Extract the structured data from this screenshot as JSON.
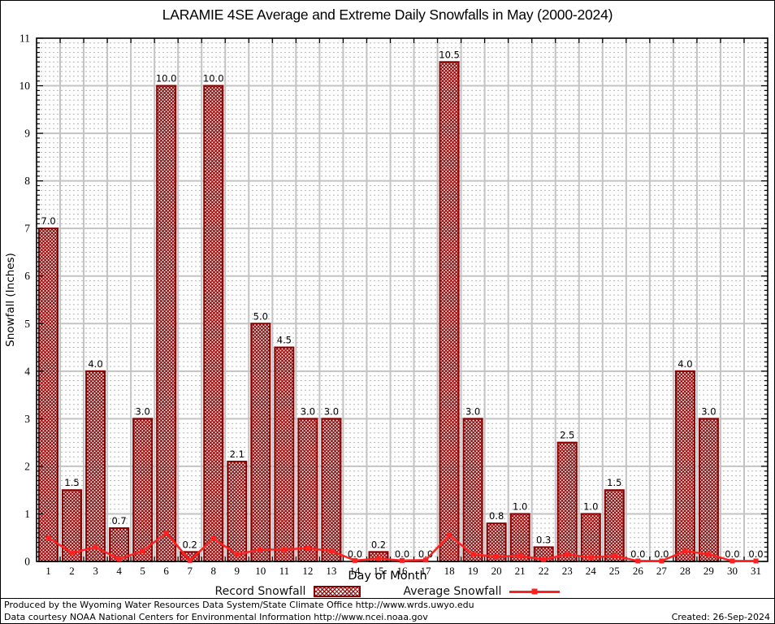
{
  "title": "LARAMIE 4SE Average and Extreme Daily Snowfalls in May (2000-2024)",
  "chart_data": {
    "type": "bar",
    "title": "LARAMIE 4SE Average and Extreme Daily Snowfalls in May (2000-2024)",
    "xlabel": "Day of Month",
    "ylabel": "Snowfall (Inches)",
    "ylim": [
      0,
      11
    ],
    "y_major_step": 1,
    "y_minor_step": 0.1,
    "grid": true,
    "legend_position": "bottom",
    "categories": [
      1,
      2,
      3,
      4,
      5,
      6,
      7,
      8,
      9,
      10,
      11,
      12,
      13,
      14,
      15,
      16,
      17,
      18,
      19,
      20,
      21,
      22,
      23,
      24,
      25,
      26,
      27,
      28,
      29,
      30,
      31
    ],
    "series": [
      {
        "name": "Record Snowfall",
        "type": "bar",
        "values": [
          7.0,
          1.5,
          4.0,
          0.7,
          3.0,
          10.0,
          0.2,
          10.0,
          2.1,
          5.0,
          4.5,
          3.0,
          3.0,
          0.0,
          0.2,
          0.0,
          0.0,
          10.5,
          3.0,
          0.8,
          1.0,
          0.3,
          2.5,
          1.0,
          1.5,
          0.0,
          0.0,
          4.0,
          3.0,
          0.0,
          0.0
        ],
        "labels": [
          "7.0",
          "1.5",
          "4.0",
          "0.7",
          "3.0",
          "10.0",
          "0.2",
          "10.0",
          "2.1",
          "5.0",
          "4.5",
          "3.0",
          "3.0",
          "0.0",
          "0.2",
          "0.0",
          "0.0",
          "10.5",
          "3.0",
          "0.8",
          "1.0",
          "0.3",
          "2.5",
          "1.0",
          "1.5",
          "0.0",
          "0.0",
          "4.0",
          "3.0",
          "0.0",
          "0.0"
        ]
      },
      {
        "name": "Average Snowfall",
        "type": "line",
        "values": [
          0.5,
          0.18,
          0.3,
          0.05,
          0.22,
          0.6,
          0.02,
          0.48,
          0.15,
          0.25,
          0.25,
          0.28,
          0.22,
          0.02,
          0.06,
          0.02,
          0.03,
          0.55,
          0.15,
          0.1,
          0.12,
          0.04,
          0.15,
          0.08,
          0.12,
          0.01,
          0.01,
          0.22,
          0.15,
          0.01,
          0.01
        ]
      }
    ],
    "colors": {
      "bar_border": "#8b0000",
      "bar_hatch": "#8c0a0a",
      "line": "#ff2020",
      "grid_major": "#c3c3c3",
      "grid_minor": "#b5b5b5",
      "frame": "#000000"
    }
  },
  "footer": {
    "line1": "Produced by the Wyoming Water Resources Data System/State Climate Office http://www.wrds.uwyo.edu",
    "line2": "Data courtesy NOAA National Centers for Environmental Information http://www.ncei.noaa.gov",
    "created": "Created: 26-Sep-2024"
  }
}
